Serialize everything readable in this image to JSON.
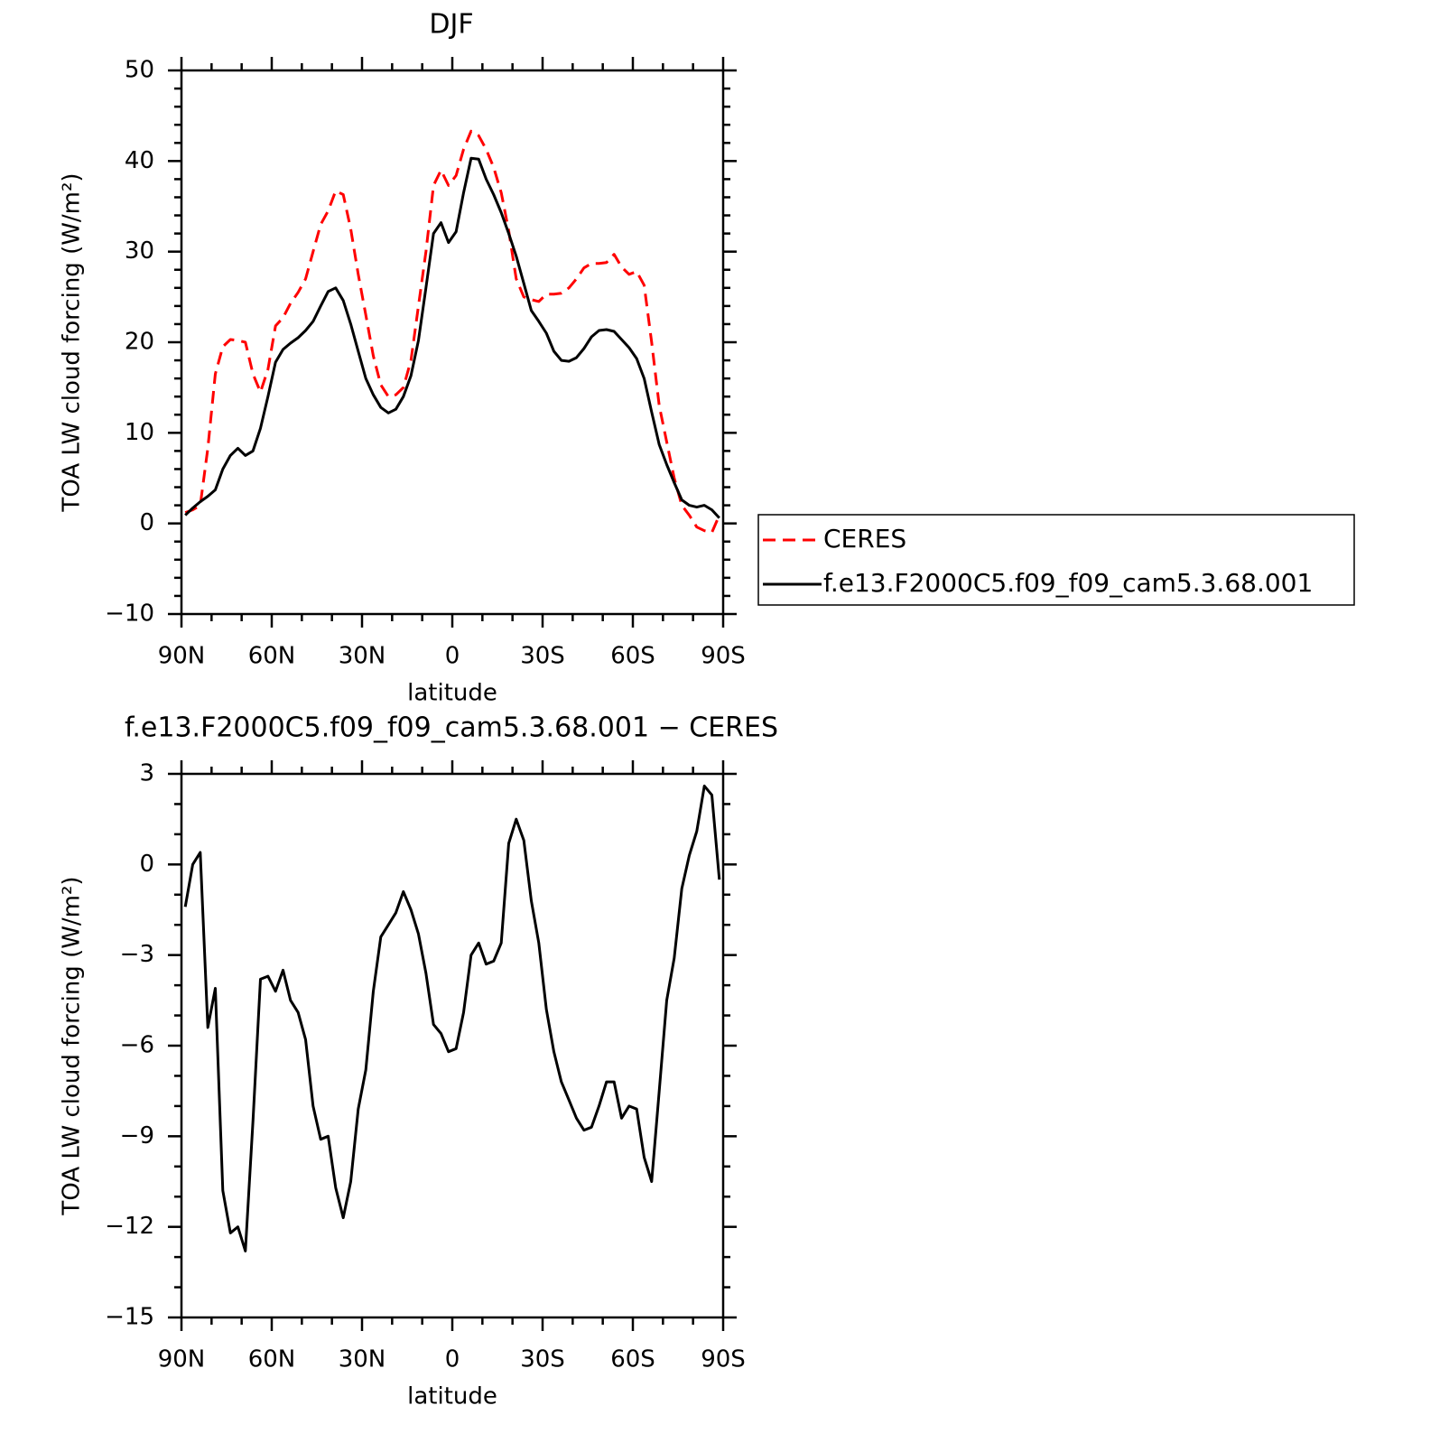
{
  "chart_data": [
    {
      "type": "line",
      "title": "DJF",
      "xlabel": "latitude",
      "ylabel": "TOA LW cloud forcing (W/m²)",
      "x": [
        88.75,
        86.25,
        83.75,
        81.25,
        78.75,
        76.25,
        73.75,
        71.25,
        68.75,
        66.25,
        63.75,
        61.25,
        58.75,
        56.25,
        53.75,
        51.25,
        48.75,
        46.25,
        43.75,
        41.25,
        38.75,
        36.25,
        33.75,
        31.25,
        28.75,
        26.25,
        23.75,
        21.25,
        18.75,
        16.25,
        13.75,
        11.25,
        8.75,
        6.25,
        3.75,
        1.25,
        -1.25,
        -3.75,
        -6.25,
        -8.75,
        -11.25,
        -13.75,
        -16.25,
        -18.75,
        -21.25,
        -23.75,
        -26.25,
        -28.75,
        -31.25,
        -33.75,
        -36.25,
        -38.75,
        -41.25,
        -43.75,
        -46.25,
        -48.75,
        -51.25,
        -53.75,
        -56.25,
        -58.75,
        -61.25,
        -63.75,
        -66.25,
        -68.75,
        -71.25,
        -73.75,
        -76.25,
        -78.75,
        -81.25,
        -83.75,
        -86.25,
        -88.75
      ],
      "series": [
        {
          "name": "CERES",
          "color": "#ff0000",
          "dash": true,
          "values": [
            1.2,
            1.5,
            2.0,
            8.3,
            16.5,
            19.5,
            20.3,
            20.2,
            20.0,
            16.5,
            14.5,
            17,
            21.8,
            22.7,
            24.3,
            25.5,
            27,
            30,
            33,
            34.5,
            36.7,
            36.3,
            32.5,
            27.5,
            23,
            18.5,
            15.3,
            14,
            14.2,
            15,
            18,
            24,
            30,
            37.3,
            39,
            37.3,
            38.4,
            41.3,
            43.3,
            42.8,
            41.3,
            39.3,
            36.5,
            32.3,
            27,
            25,
            24.7,
            24.5,
            25.3,
            25.3,
            25.4,
            26,
            27,
            28.2,
            28.7,
            28.7,
            28.8,
            29.7,
            28.3,
            27.5,
            27.8,
            26.3,
            20,
            13,
            9,
            5,
            2,
            0.9,
            -0.4,
            -0.8,
            -1.0,
            0.9
          ]
        },
        {
          "name": "f.e13.F2000C5.f09_f09_cam5.3.68.001",
          "color": "#000000",
          "dash": false,
          "values": [
            0.9,
            1.7,
            2.4,
            3.0,
            3.7,
            6.0,
            7.5,
            8.3,
            7.5,
            8.0,
            10.5,
            14,
            17.8,
            19.2,
            19.9,
            20.5,
            21.3,
            22.3,
            24,
            25.6,
            26,
            24.6,
            22,
            19,
            16,
            14.2,
            12.8,
            12.2,
            12.6,
            14,
            16.3,
            20.2,
            26,
            32,
            33.2,
            31,
            32.2,
            36.5,
            40.3,
            40.2,
            38,
            36.3,
            34.3,
            32,
            29.5,
            26.5,
            23.5,
            22.3,
            21,
            19,
            18,
            17.9,
            18.3,
            19.3,
            20.6,
            21.3,
            21.4,
            21.2,
            20.3,
            19.4,
            18.2,
            16,
            12.3,
            8.7,
            6.5,
            4.5,
            2.6,
            2,
            1.8,
            2,
            1.5,
            0.6
          ]
        }
      ],
      "xlim": [
        90,
        -90
      ],
      "xticks": [
        {
          "value": 90,
          "label": "90N"
        },
        {
          "value": 60,
          "label": "60N"
        },
        {
          "value": 30,
          "label": "30N"
        },
        0,
        {
          "value": -30,
          "label": "30S"
        },
        {
          "value": -60,
          "label": "60S"
        },
        {
          "value": -90,
          "label": "90S"
        }
      ],
      "xminorticks": [
        80,
        70,
        50,
        40,
        20,
        10,
        -10,
        -20,
        -40,
        -50,
        -70,
        -80
      ],
      "ylim": [
        -10,
        50
      ],
      "yticks": [
        {
          "value": -10,
          "label": "−10"
        },
        0,
        10,
        20,
        30,
        40,
        50
      ],
      "yminorticks": [
        -8,
        -6,
        -4,
        -2,
        2,
        4,
        6,
        8,
        12,
        14,
        16,
        18,
        22,
        24,
        26,
        28,
        32,
        34,
        36,
        38,
        42,
        44,
        46,
        48
      ],
      "legend": "outside-right"
    },
    {
      "type": "line",
      "title": "f.e13.F2000C5.f09_f09_cam5.3.68.001 − CERES",
      "xlabel": "latitude",
      "ylabel": "TOA LW cloud forcing (W/m²)",
      "x": [
        88.75,
        86.25,
        83.75,
        81.25,
        78.75,
        76.25,
        73.75,
        71.25,
        68.75,
        66.25,
        63.75,
        61.25,
        58.75,
        56.25,
        53.75,
        51.25,
        48.75,
        46.25,
        43.75,
        41.25,
        38.75,
        36.25,
        33.75,
        31.25,
        28.75,
        26.25,
        23.75,
        21.25,
        18.75,
        16.25,
        13.75,
        11.25,
        8.75,
        6.25,
        3.75,
        1.25,
        -1.25,
        -3.75,
        -6.25,
        -8.75,
        -11.25,
        -13.75,
        -16.25,
        -18.75,
        -21.25,
        -23.75,
        -26.25,
        -28.75,
        -31.25,
        -33.75,
        -36.25,
        -38.75,
        -41.25,
        -43.75,
        -46.25,
        -48.75,
        -51.25,
        -53.75,
        -56.25,
        -58.75,
        -61.25,
        -63.75,
        -66.25,
        -68.75,
        -71.25,
        -73.75,
        -76.25,
        -78.75,
        -81.25,
        -83.75,
        -86.25,
        -88.75
      ],
      "color": "#000000",
      "values": [
        -1.4,
        0,
        0.4,
        -5.4,
        -4.1,
        -10.8,
        -12.2,
        -12.0,
        -12.8,
        -8.5,
        -3.8,
        -3.7,
        -4.2,
        -3.5,
        -4.5,
        -4.9,
        -5.8,
        -8,
        -9.1,
        -9.0,
        -10.7,
        -11.7,
        -10.5,
        -8.1,
        -6.8,
        -4.2,
        -2.4,
        -2,
        -1.6,
        -0.9,
        -1.5,
        -2.3,
        -3.6,
        -5.3,
        -5.6,
        -6.2,
        -6.1,
        -4.9,
        -3,
        -2.6,
        -3.3,
        -3.2,
        -2.6,
        0.7,
        1.5,
        0.8,
        -1.2,
        -2.6,
        -4.8,
        -6.2,
        -7.2,
        -7.8,
        -8.4,
        -8.8,
        -8.7,
        -8,
        -7.2,
        -7.2,
        -8.4,
        -8.0,
        -8.1,
        -9.7,
        -10.5,
        -7.5,
        -4.5,
        -3.1,
        -0.8,
        0.3,
        1.1,
        2.6,
        2.3,
        -0.5
      ],
      "xlim": [
        90,
        -90
      ],
      "xticks": [
        {
          "value": 90,
          "label": "90N"
        },
        {
          "value": 60,
          "label": "60N"
        },
        {
          "value": 30,
          "label": "30N"
        },
        0,
        {
          "value": -30,
          "label": "30S"
        },
        {
          "value": -60,
          "label": "60S"
        },
        {
          "value": -90,
          "label": "90S"
        }
      ],
      "xminorticks": [
        80,
        70,
        50,
        40,
        20,
        10,
        -10,
        -20,
        -40,
        -50,
        -70,
        -80
      ],
      "ylim": [
        -15,
        3
      ],
      "yticks": [
        {
          "value": -15,
          "label": "−15"
        },
        {
          "value": -12,
          "label": "−12"
        },
        {
          "value": -9,
          "label": "−9"
        },
        {
          "value": -6,
          "label": "−6"
        },
        {
          "value": -3,
          "label": "−3"
        },
        0,
        3
      ],
      "yminorticks": [
        -14,
        -13,
        -11,
        -10,
        -8,
        -7,
        -5,
        -4,
        -2,
        -1,
        1,
        2
      ]
    }
  ]
}
